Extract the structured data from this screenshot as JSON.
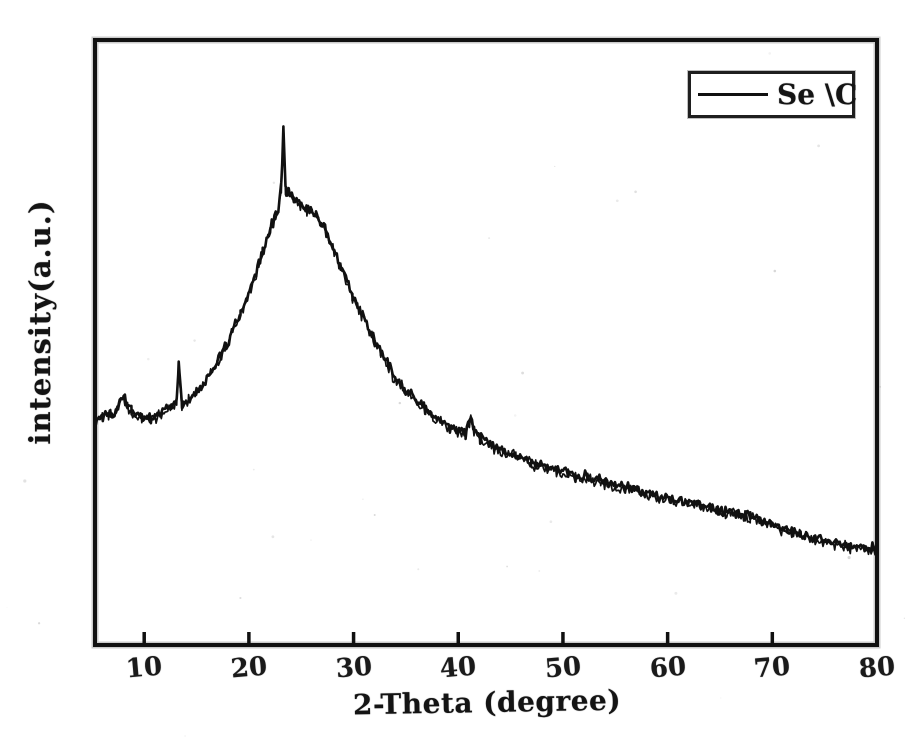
{
  "style": {
    "background": "#ffffff",
    "ink": "#111111"
  },
  "chart_data": {
    "type": "line",
    "title": "",
    "xlabel": "2-Theta (degree)",
    "ylabel": "intensity(a.u.)",
    "x_ticks": [
      10,
      20,
      30,
      40,
      50,
      60,
      70,
      80
    ],
    "xlim": [
      5.3,
      80
    ],
    "ylim": [
      0,
      1
    ],
    "y_ticks": [],
    "grid": false,
    "legend": {
      "position": "top-right",
      "entries": [
        {
          "label": "Se \\C",
          "line_color": "#111111"
        }
      ]
    },
    "series": [
      {
        "name": "Se \\C",
        "points": [
          [
            5.4,
            0.372
          ],
          [
            6.0,
            0.376
          ],
          [
            6.6,
            0.381
          ],
          [
            7.3,
            0.388
          ],
          [
            8.0,
            0.414
          ],
          [
            8.4,
            0.398
          ],
          [
            8.8,
            0.385
          ],
          [
            9.7,
            0.379
          ],
          [
            10.7,
            0.375
          ],
          [
            11.6,
            0.385
          ],
          [
            12.6,
            0.393
          ],
          [
            13.1,
            0.4
          ],
          [
            13.3,
            0.466
          ],
          [
            13.6,
            0.398
          ],
          [
            14.2,
            0.404
          ],
          [
            15.0,
            0.418
          ],
          [
            16.4,
            0.451
          ],
          [
            17.8,
            0.493
          ],
          [
            19.2,
            0.55
          ],
          [
            20.4,
            0.6
          ],
          [
            21.3,
            0.65
          ],
          [
            22.1,
            0.691
          ],
          [
            22.8,
            0.719
          ],
          [
            23.1,
            0.76
          ],
          [
            23.3,
            0.856
          ],
          [
            23.5,
            0.752
          ],
          [
            24.1,
            0.742
          ],
          [
            24.8,
            0.731
          ],
          [
            25.5,
            0.724
          ],
          [
            26.4,
            0.711
          ],
          [
            27.4,
            0.683
          ],
          [
            28.6,
            0.633
          ],
          [
            29.9,
            0.579
          ],
          [
            31.3,
            0.529
          ],
          [
            32.6,
            0.484
          ],
          [
            34.0,
            0.441
          ],
          [
            35.5,
            0.412
          ],
          [
            36.9,
            0.388
          ],
          [
            38.3,
            0.369
          ],
          [
            39.7,
            0.357
          ],
          [
            40.7,
            0.352
          ],
          [
            41.2,
            0.378
          ],
          [
            41.5,
            0.358
          ],
          [
            42.1,
            0.342
          ],
          [
            43.6,
            0.327
          ],
          [
            45.5,
            0.312
          ],
          [
            47.4,
            0.299
          ],
          [
            49.3,
            0.289
          ],
          [
            51.2,
            0.281
          ],
          [
            53.6,
            0.271
          ],
          [
            55.9,
            0.26
          ],
          [
            58.3,
            0.25
          ],
          [
            60.7,
            0.241
          ],
          [
            63.1,
            0.231
          ],
          [
            65.5,
            0.222
          ],
          [
            67.9,
            0.212
          ],
          [
            70.3,
            0.198
          ],
          [
            72.7,
            0.182
          ],
          [
            75.1,
            0.172
          ],
          [
            77.5,
            0.164
          ],
          [
            80.0,
            0.157
          ]
        ],
        "features": [
          "broad amorphous hump centered near 23-25 deg",
          "sharp narrow spike at 23.3 deg",
          "minor spike near 13.3 deg",
          "small bumps near 8 deg and 41 deg",
          "slowly decaying noisy tail from 40 to 80 deg"
        ]
      }
    ]
  }
}
